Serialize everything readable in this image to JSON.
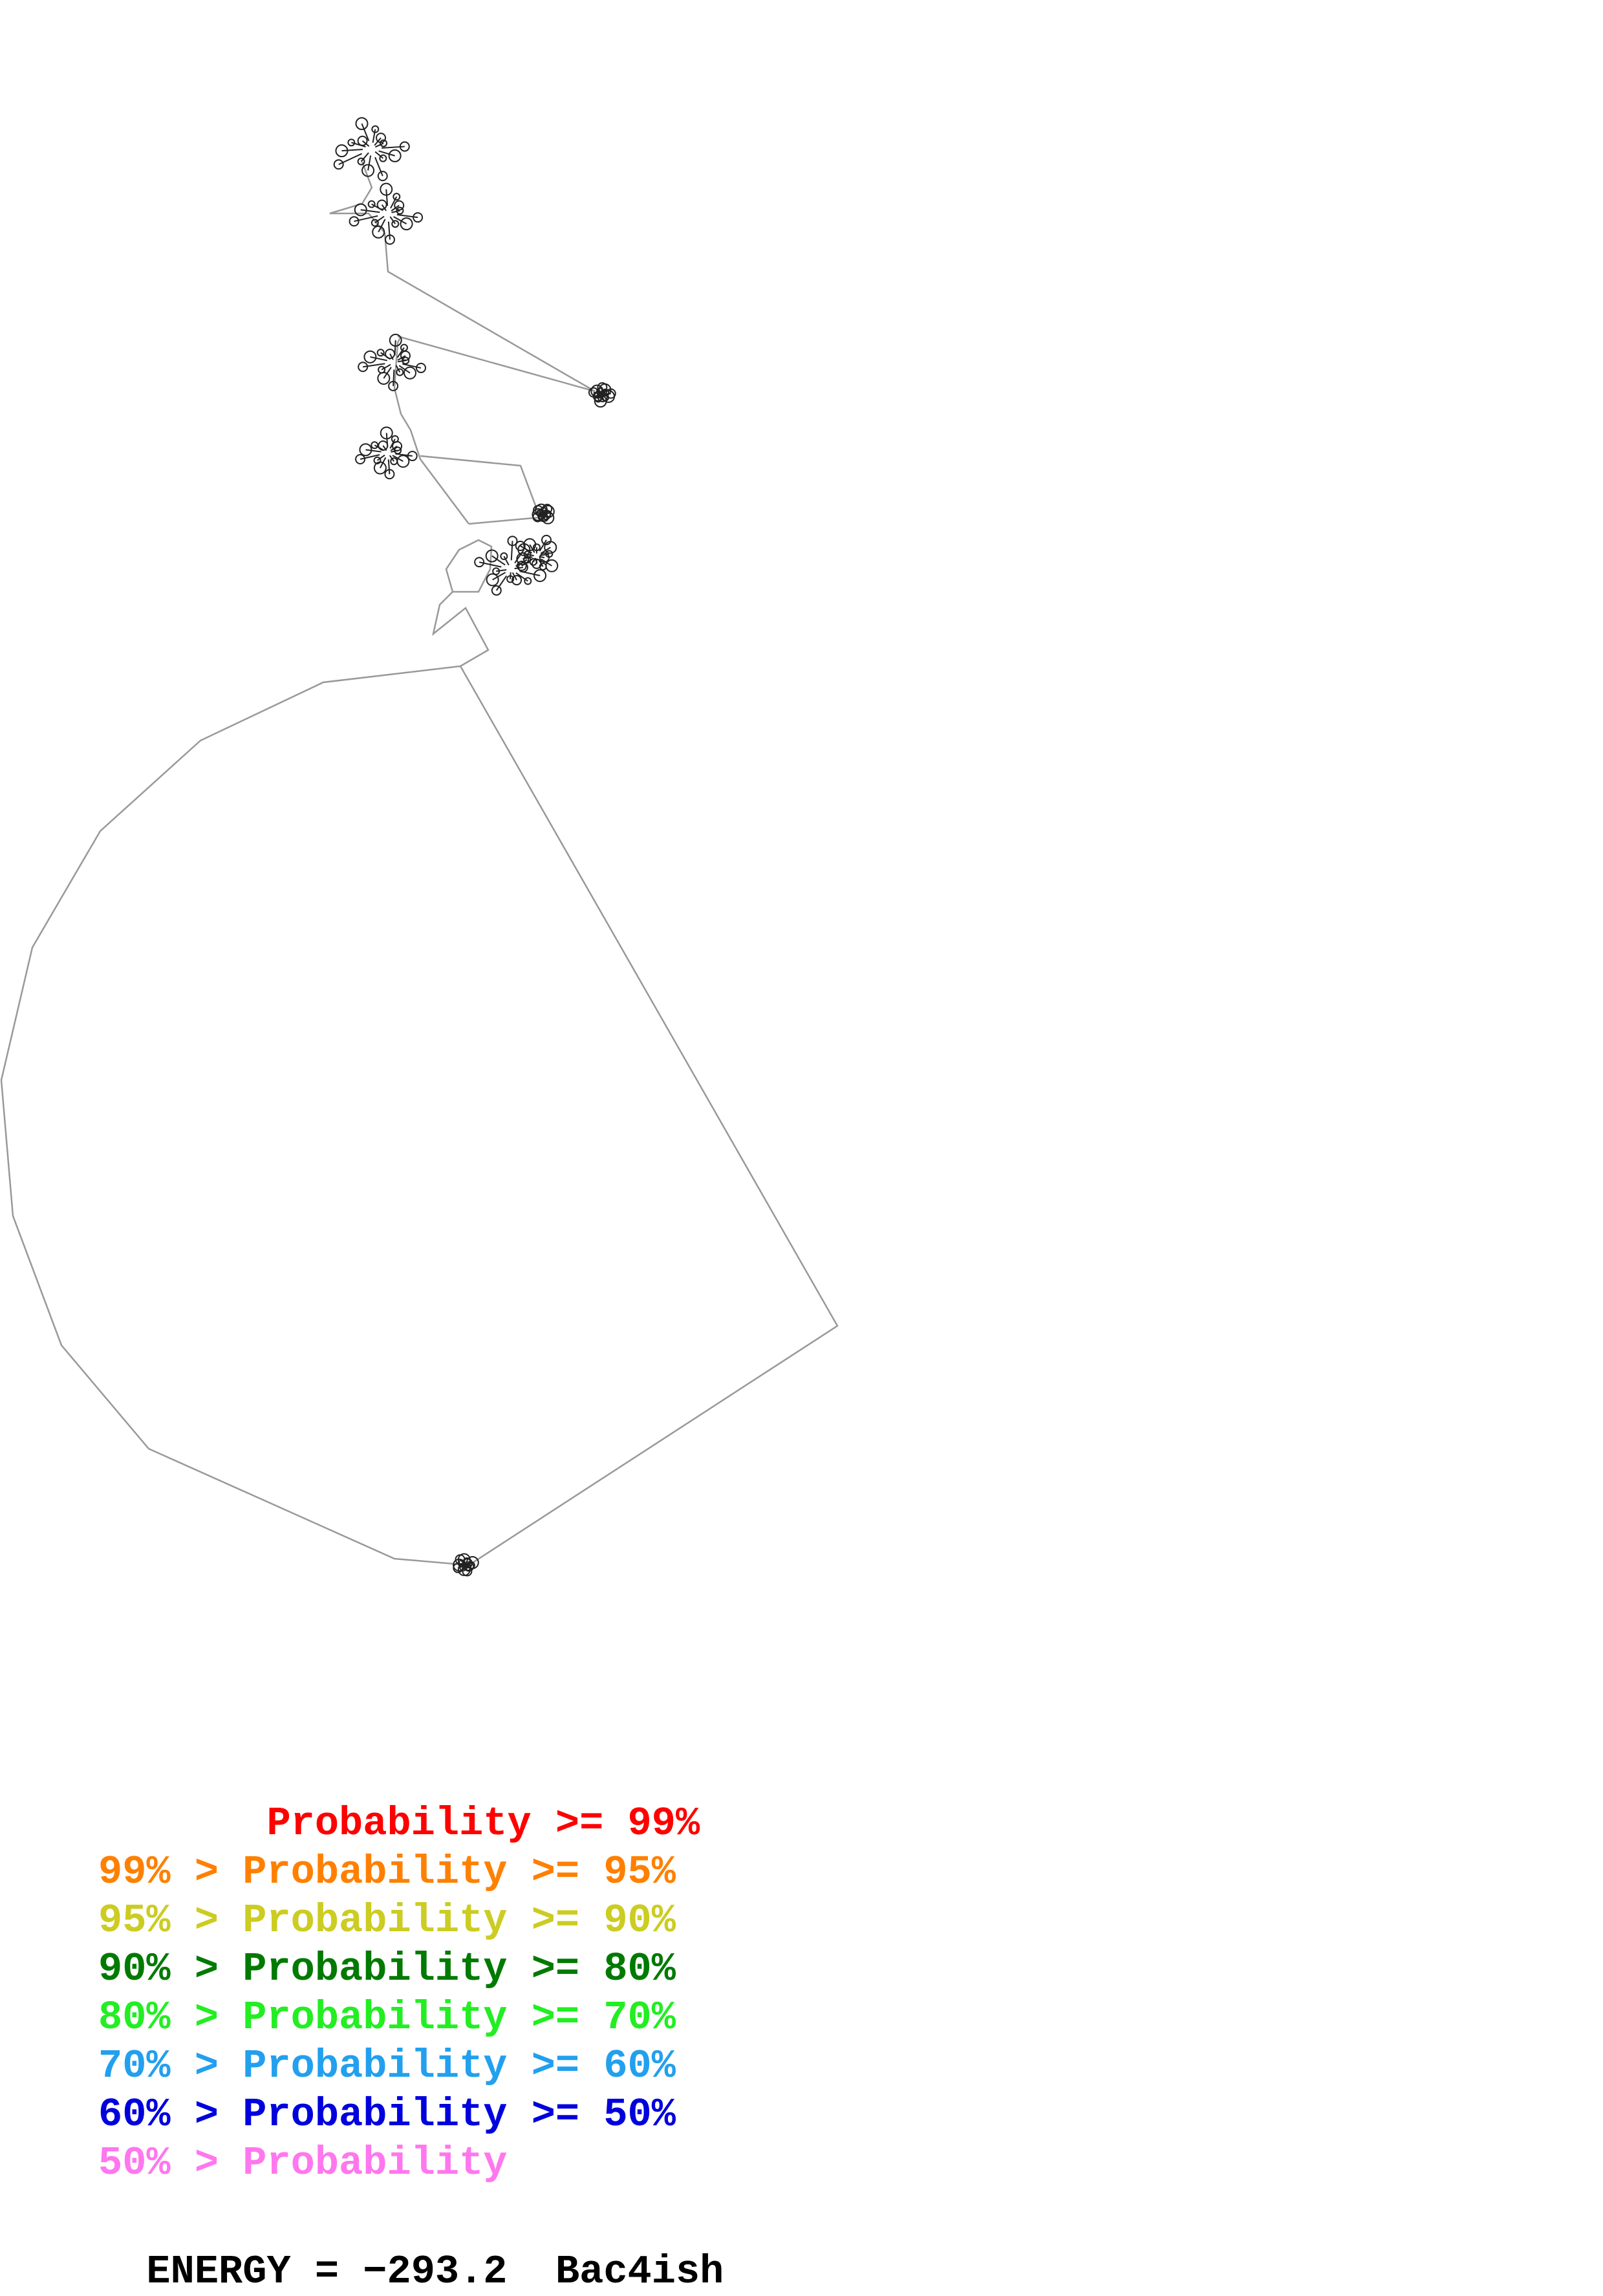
{
  "legend": {
    "lines": [
      {
        "text": "       Probability >= 99%",
        "color": "#ff0000"
      },
      {
        "text": "99% > Probability >= 95%",
        "color": "#ff8000"
      },
      {
        "text": "95% > Probability >= 90%",
        "color": "#cccc22"
      },
      {
        "text": "90% > Probability >= 80%",
        "color": "#007a00"
      },
      {
        "text": "80% > Probability >= 70%",
        "color": "#22ee22"
      },
      {
        "text": "70% > Probability >= 60%",
        "color": "#22a0ee"
      },
      {
        "text": "60% > Probability >= 50%",
        "color": "#0000dd"
      },
      {
        "text": "50% > Probability",
        "color": "#ff77ee"
      }
    ]
  },
  "energy": {
    "label": "ENERGY = −293.2",
    "name": "Bac4ish"
  },
  "colors": {
    "backbone": "#888888",
    "bases": "#222222"
  }
}
